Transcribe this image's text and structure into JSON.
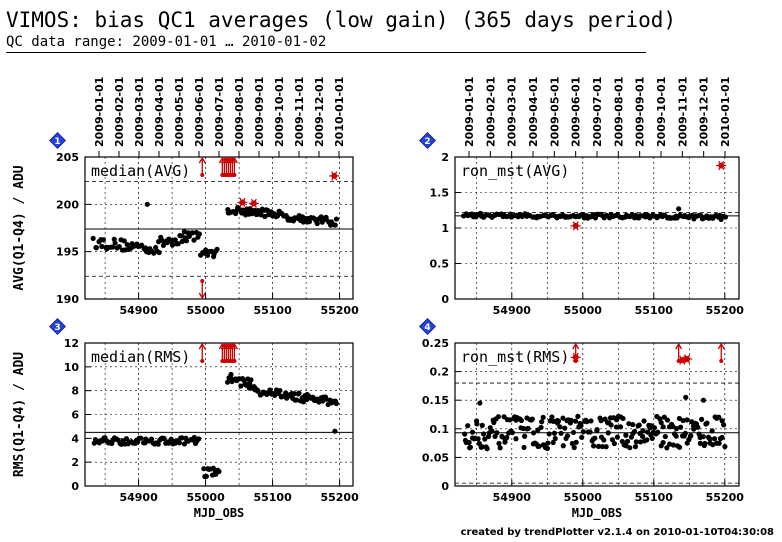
{
  "header": {
    "title": "VIMOS: bias QC1 averages (low gain) (365 days period)",
    "subtitle": "QC data range: 2009-01-01 … 2010-01-02"
  },
  "footer": "created by trendPlotter v2.1.4 on 2010-01-10T04:30:08",
  "colors": {
    "data": "#000000",
    "outlier": "#cc0000",
    "badge": "#2244dd"
  },
  "chart_data": [
    {
      "id": "1",
      "type": "scatter",
      "label": "median(AVG)",
      "ylabel": "AVG(Q1-Q4) / ADU",
      "xlabel": "",
      "xlim": [
        54820,
        55220
      ],
      "ylim": [
        190,
        205
      ],
      "yticks": [
        190,
        195,
        200,
        205
      ],
      "xticks": [
        54900,
        55000,
        55100,
        55200
      ],
      "top_date_ticks": [
        "2009-01-01",
        "2009-02-01",
        "2009-03-01",
        "2009-04-01",
        "2009-05-01",
        "2009-06-01",
        "2009-07-01",
        "2009-08-01",
        "2009-09-01",
        "2009-10-01",
        "2009-11-01",
        "2009-12-01",
        "2010-01-01"
      ],
      "ref_line": 197.4,
      "dashed_lines": [
        192.4,
        202.4
      ],
      "grid": true,
      "segments": [
        {
          "x": [
            54833,
            54930
          ],
          "y": [
            196.0,
            195.3
          ],
          "jitter": 0.6,
          "n": 40
        },
        {
          "x": [
            54930,
            54990
          ],
          "y": [
            195.9,
            196.9
          ],
          "jitter": 0.6,
          "n": 28
        },
        {
          "x": [
            54993,
            55018
          ],
          "y": [
            194.8,
            194.9
          ],
          "jitter": 0.4,
          "n": 12
        },
        {
          "x": [
            55033,
            55110
          ],
          "y": [
            199.4,
            199.0
          ],
          "jitter": 0.4,
          "n": 45
        },
        {
          "x": [
            55110,
            55195
          ],
          "y": [
            198.8,
            198.1
          ],
          "jitter": 0.4,
          "n": 38
        }
      ],
      "extra_points": [
        {
          "x": 54913,
          "y": 200.0
        }
      ],
      "outliers": [
        {
          "x": 55055,
          "y": 200.2
        },
        {
          "x": 55072,
          "y": 200.1
        },
        {
          "x": 55192,
          "y": 203.0
        }
      ],
      "arrows_up": [
        54995,
        55025,
        55028,
        55031,
        55034,
        55037,
        55040,
        55043
      ],
      "arrows_down": [
        54995
      ]
    },
    {
      "id": "2",
      "type": "scatter",
      "label": "ron_mst(AVG)",
      "ylabel": "",
      "xlabel": "",
      "xlim": [
        54820,
        55220
      ],
      "ylim": [
        0,
        2
      ],
      "yticks": [
        0,
        0.5,
        1,
        1.5,
        2
      ],
      "xticks": [
        54900,
        55000,
        55100,
        55200
      ],
      "top_date_ticks": [
        "2009-01-01",
        "2009-02-01",
        "2009-03-01",
        "2009-04-01",
        "2009-05-01",
        "2009-06-01",
        "2009-07-01",
        "2009-08-01",
        "2009-09-01",
        "2009-10-01",
        "2009-11-01",
        "2009-12-01",
        "2010-01-01"
      ],
      "ref_line": 1.17,
      "dashed_lines": [
        1.22
      ],
      "grid": true,
      "segments": [
        {
          "x": [
            54833,
            55200
          ],
          "y": [
            1.18,
            1.15
          ],
          "jitter": 0.03,
          "n": 150
        }
      ],
      "extra_points": [
        {
          "x": 55135,
          "y": 1.27
        }
      ],
      "outliers": [
        {
          "x": 54990,
          "y": 1.03
        },
        {
          "x": 55195,
          "y": 1.88
        }
      ],
      "arrows_up": [],
      "arrows_down": []
    },
    {
      "id": "3",
      "type": "scatter",
      "label": "median(RMS)",
      "ylabel": "RMS(Q1-Q4) / ADU",
      "xlabel": "MJD_OBS",
      "xlim": [
        54820,
        55220
      ],
      "ylim": [
        0,
        12
      ],
      "yticks": [
        0,
        2,
        4,
        6,
        8,
        10,
        12
      ],
      "xticks": [
        54900,
        55000,
        55100,
        55200
      ],
      "ref_line": 4.5,
      "dashed_lines": [],
      "grid": true,
      "segments": [
        {
          "x": [
            54833,
            54990
          ],
          "y": [
            3.8,
            3.8
          ],
          "jitter": 0.3,
          "n": 65
        },
        {
          "x": [
            54997,
            55020
          ],
          "y": [
            1.2,
            1.1
          ],
          "jitter": 0.4,
          "n": 12
        },
        {
          "x": [
            55033,
            55075
          ],
          "y": [
            9.1,
            8.4
          ],
          "jitter": 0.4,
          "n": 25
        },
        {
          "x": [
            55075,
            55195
          ],
          "y": [
            8.0,
            7.0
          ],
          "jitter": 0.35,
          "n": 60
        }
      ],
      "extra_points": [
        {
          "x": 55193,
          "y": 4.6
        }
      ],
      "outliers": [],
      "arrows_up": [
        54995,
        55025,
        55028,
        55031,
        55034,
        55037,
        55040,
        55043
      ],
      "arrows_down": []
    },
    {
      "id": "4",
      "type": "scatter",
      "label": "ron_mst(RMS)",
      "ylabel": "",
      "xlabel": "MJD_OBS",
      "xlim": [
        54820,
        55220
      ],
      "ylim": [
        0,
        0.25
      ],
      "yticks": [
        0,
        0.05,
        0.1,
        0.15,
        0.2,
        0.25
      ],
      "xticks": [
        54900,
        55000,
        55100,
        55200
      ],
      "ref_line": 0.093,
      "dashed_lines": [
        0.18,
        0.005
      ],
      "grid": true,
      "segments": [
        {
          "x": [
            54833,
            55200
          ],
          "y": [
            0.093,
            0.095
          ],
          "jitter": 0.028,
          "n": 240
        }
      ],
      "extra_points": [
        {
          "x": 54855,
          "y": 0.145
        },
        {
          "x": 55145,
          "y": 0.155
        },
        {
          "x": 55170,
          "y": 0.15
        }
      ],
      "outliers": [
        {
          "x": 54990,
          "y": 0.225
        },
        {
          "x": 55140,
          "y": 0.22
        },
        {
          "x": 55147,
          "y": 0.222
        }
      ],
      "arrows_up": [
        54990,
        55135,
        55195
      ],
      "arrows_down": []
    }
  ]
}
